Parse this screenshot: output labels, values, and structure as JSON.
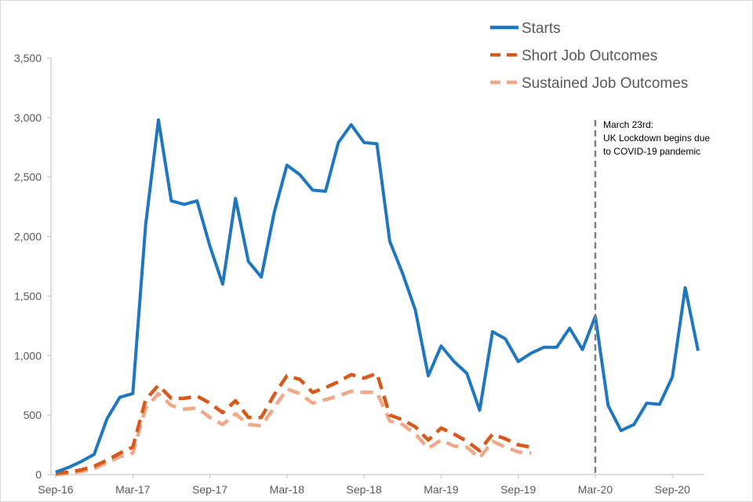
{
  "chart_data": {
    "type": "line",
    "title": "",
    "xlabel": "",
    "ylabel": "",
    "ylim": [
      0,
      3500
    ],
    "y_ticks": [
      0,
      500,
      1000,
      1500,
      2000,
      2500,
      3000,
      3500
    ],
    "y_tick_labels": [
      "0",
      "500",
      "1,000",
      "1,500",
      "2,000",
      "2,500",
      "3,000",
      "3,500"
    ],
    "x_ticks": [
      "Sep-16",
      "Mar-17",
      "Sep-17",
      "Mar-18",
      "Sep-18",
      "Mar-19",
      "Sep-19",
      "Mar-20",
      "Sep-20"
    ],
    "x_tick_months": [
      "2016-09",
      "2017-03",
      "2017-09",
      "2018-03",
      "2018-09",
      "2019-03",
      "2019-09",
      "2020-03",
      "2020-09"
    ],
    "x_range": [
      "2016-09",
      "2020-11"
    ],
    "grid": false,
    "legend_position": "top-right",
    "colors": {
      "starts": "#1F77BF",
      "short": "#D55A1C",
      "sustained": "#EFA888",
      "annotation_line": "#808080",
      "axis": "#bfbfbf"
    },
    "series": [
      {
        "name": "Starts",
        "style": "solid",
        "x": [
          "2016-09",
          "2016-10",
          "2016-11",
          "2016-12",
          "2017-01",
          "2017-02",
          "2017-03",
          "2017-04",
          "2017-05",
          "2017-06",
          "2017-07",
          "2017-08",
          "2017-09",
          "2017-10",
          "2017-11",
          "2017-12",
          "2018-01",
          "2018-02",
          "2018-03",
          "2018-04",
          "2018-05",
          "2018-06",
          "2018-07",
          "2018-08",
          "2018-09",
          "2018-10",
          "2018-11",
          "2018-12",
          "2019-01",
          "2019-02",
          "2019-03",
          "2019-04",
          "2019-05",
          "2019-06",
          "2019-07",
          "2019-08",
          "2019-09",
          "2019-10",
          "2019-11",
          "2019-12",
          "2020-01",
          "2020-02",
          "2020-03",
          "2020-04",
          "2020-05",
          "2020-06",
          "2020-07",
          "2020-08",
          "2020-09",
          "2020-10",
          "2020-11"
        ],
        "values": [
          20,
          60,
          110,
          170,
          470,
          650,
          680,
          2100,
          2980,
          2300,
          2270,
          2300,
          1920,
          1600,
          2320,
          1790,
          1660,
          2200,
          2600,
          2520,
          2390,
          2380,
          2790,
          2940,
          2790,
          2780,
          1960,
          1690,
          1380,
          830,
          1080,
          950,
          850,
          540,
          1200,
          1140,
          950,
          1020,
          1070,
          1070,
          1230,
          1050,
          1330,
          580,
          370,
          420,
          600,
          590,
          820,
          1570,
          1040
        ]
      },
      {
        "name": "Short Job Outcomes",
        "style": "dashed",
        "x": [
          "2016-09",
          "2016-10",
          "2016-11",
          "2016-12",
          "2017-01",
          "2017-02",
          "2017-03",
          "2017-04",
          "2017-05",
          "2017-06",
          "2017-07",
          "2017-08",
          "2017-09",
          "2017-10",
          "2017-11",
          "2017-12",
          "2018-01",
          "2018-02",
          "2018-03",
          "2018-04",
          "2018-05",
          "2018-06",
          "2018-07",
          "2018-08",
          "2018-09",
          "2018-10",
          "2018-11",
          "2018-12",
          "2019-01",
          "2019-02",
          "2019-03",
          "2019-04",
          "2019-05",
          "2019-06",
          "2019-07",
          "2019-08",
          "2019-09",
          "2019-10"
        ],
        "values": [
          10,
          20,
          40,
          70,
          120,
          180,
          230,
          630,
          750,
          640,
          640,
          660,
          600,
          520,
          620,
          480,
          480,
          670,
          830,
          800,
          690,
          730,
          780,
          840,
          810,
          850,
          500,
          460,
          400,
          290,
          390,
          340,
          280,
          200,
          340,
          300,
          250,
          230
        ]
      },
      {
        "name": "Sustained Job Outcomes",
        "style": "dashed",
        "x": [
          "2016-09",
          "2016-10",
          "2016-11",
          "2016-12",
          "2017-01",
          "2017-02",
          "2017-03",
          "2017-04",
          "2017-05",
          "2017-06",
          "2017-07",
          "2017-08",
          "2017-09",
          "2017-10",
          "2017-11",
          "2017-12",
          "2018-01",
          "2018-02",
          "2018-03",
          "2018-04",
          "2018-05",
          "2018-06",
          "2018-07",
          "2018-08",
          "2018-09",
          "2018-10",
          "2018-11",
          "2018-12",
          "2019-01",
          "2019-02",
          "2019-03",
          "2019-04",
          "2019-05",
          "2019-06",
          "2019-07",
          "2019-08",
          "2019-09",
          "2019-10"
        ],
        "values": [
          0,
          10,
          25,
          50,
          100,
          150,
          180,
          560,
          680,
          580,
          550,
          560,
          480,
          420,
          510,
          420,
          410,
          560,
          720,
          680,
          600,
          630,
          660,
          700,
          690,
          690,
          450,
          420,
          340,
          220,
          290,
          240,
          230,
          140,
          280,
          230,
          190,
          180
        ]
      }
    ],
    "annotations": [
      {
        "x": "2020-03",
        "lines": [
          "March 23rd:",
          "UK Lockdown begins due",
          "to COVID-19 pandemic"
        ]
      }
    ]
  }
}
